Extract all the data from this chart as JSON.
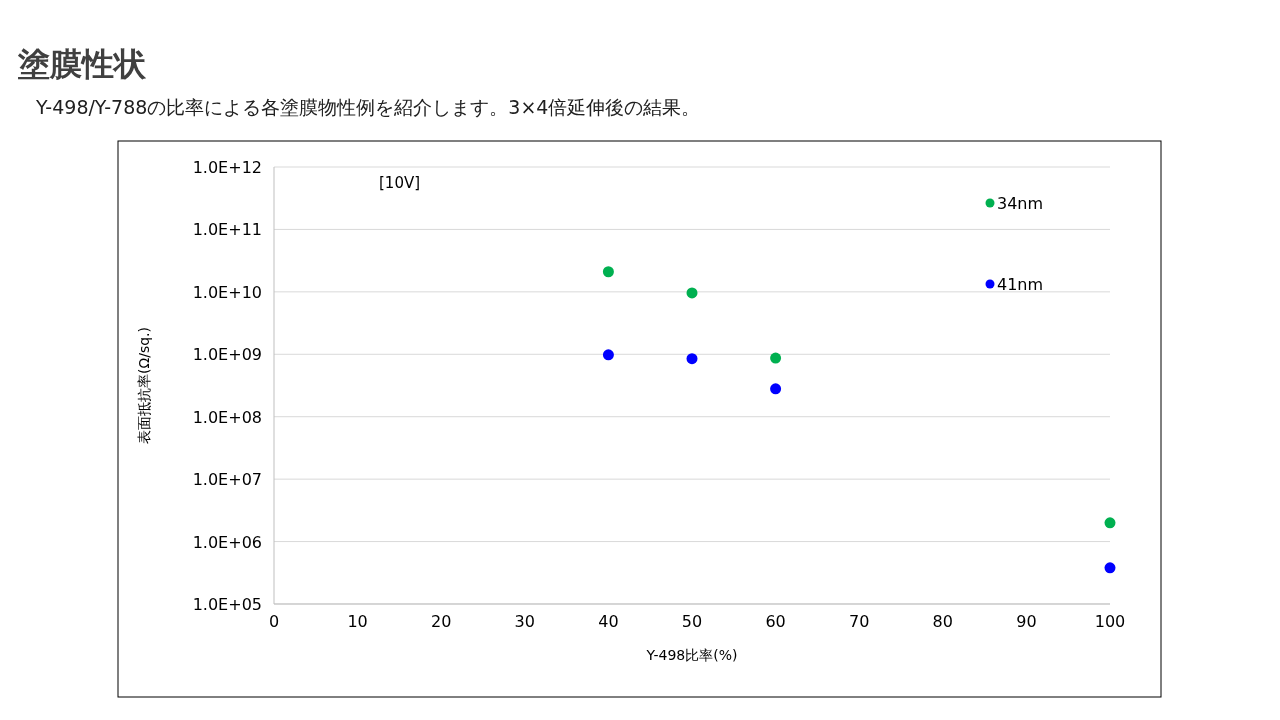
{
  "chart_data": {
    "type": "scatter",
    "title": "塗膜性状",
    "subtitle": "Y-498/Y-788の比率による各塗膜物性例を紹介します。3×4倍延伸後の結果。",
    "xlabel": "Y-498比率(%)",
    "ylabel": "表面抵抗率(Ω/sq.)",
    "annotations": [
      "[10V]"
    ],
    "x": [
      40,
      50,
      60,
      100
    ],
    "series": [
      {
        "name": "34nm",
        "color": "#00b050",
        "values": [
          21000000000.0,
          9600000000.0,
          870000000.0,
          2000000.0
        ]
      },
      {
        "name": "41nm",
        "color": "#0000ff",
        "values": [
          980000000.0,
          850000000.0,
          280000000.0,
          380000.0
        ]
      }
    ],
    "xlim": [
      0,
      100
    ],
    "xticks": [
      0,
      10,
      20,
      30,
      40,
      50,
      60,
      70,
      80,
      90,
      100
    ],
    "ylim": [
      100000.0,
      1000000000000.0
    ],
    "yticks": [
      {
        "value": 100000.0,
        "label": "1.0E+05"
      },
      {
        "value": 1000000.0,
        "label": "1.0E+06"
      },
      {
        "value": 10000000.0,
        "label": "1.0E+07"
      },
      {
        "value": 100000000.0,
        "label": "1.0E+08"
      },
      {
        "value": 1000000000.0,
        "label": "1.0E+09"
      },
      {
        "value": 10000000000.0,
        "label": "1.0E+10"
      },
      {
        "value": 100000000000.0,
        "label": "1.0E+11"
      },
      {
        "value": 1000000000000.0,
        "label": "1.0E+12"
      }
    ],
    "log": "y",
    "grid": "y",
    "legend": "top right",
    "marker": "circle"
  }
}
